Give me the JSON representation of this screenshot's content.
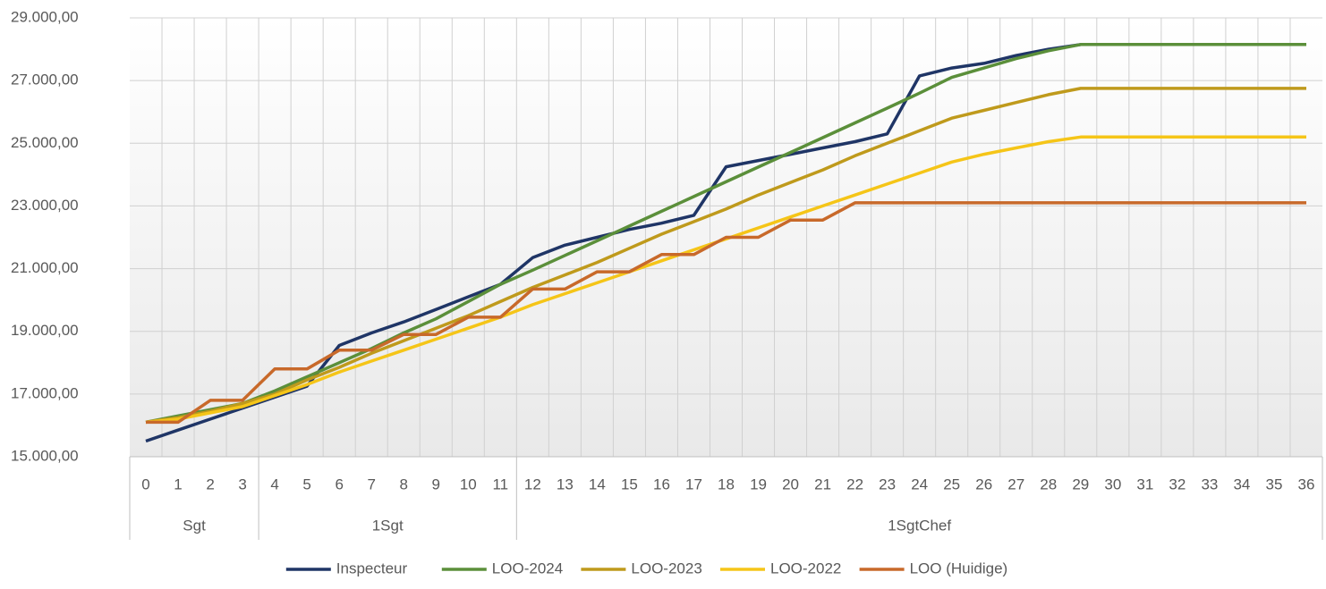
{
  "chart_data": {
    "type": "line",
    "categories": [
      "0",
      "1",
      "2",
      "3",
      "4",
      "5",
      "6",
      "7",
      "8",
      "9",
      "10",
      "11",
      "12",
      "13",
      "14",
      "15",
      "16",
      "17",
      "18",
      "19",
      "20",
      "21",
      "22",
      "23",
      "24",
      "25",
      "26",
      "27",
      "28",
      "29",
      "30",
      "31",
      "32",
      "33",
      "34",
      "35",
      "36"
    ],
    "groups": [
      {
        "name": "Sgt",
        "count": 4
      },
      {
        "name": "1Sgt",
        "count": 8
      },
      {
        "name": "1SgtChef",
        "count": 25
      }
    ],
    "ylim": [
      15000,
      29000
    ],
    "yticks": [
      {
        "value": 15000,
        "label": "15.000,00"
      },
      {
        "value": 17000,
        "label": "17.000,00"
      },
      {
        "value": 19000,
        "label": "19.000,00"
      },
      {
        "value": 21000,
        "label": "21.000,00"
      },
      {
        "value": 23000,
        "label": "23.000,00"
      },
      {
        "value": 25000,
        "label": "25.000,00"
      },
      {
        "value": 27000,
        "label": "27.000,00"
      },
      {
        "value": 29000,
        "label": "29.000,00"
      }
    ],
    "grid": true,
    "legend": "bottom",
    "series": [
      {
        "name": "Inspecteur",
        "color": "#1f3566",
        "values": [
          15500,
          15850,
          16200,
          16550,
          16900,
          17250,
          18550,
          18950,
          19300,
          19700,
          20100,
          20500,
          21350,
          21750,
          22000,
          22250,
          22450,
          22700,
          24250,
          24450,
          24650,
          24850,
          25050,
          25300,
          27150,
          27400,
          27550,
          27800,
          28000,
          28150,
          28150,
          28150,
          28150,
          28150,
          28150,
          28150,
          28150
        ]
      },
      {
        "name": "LOO-2024",
        "color": "#5b8f3a",
        "values": [
          16100,
          16300,
          16500,
          16700,
          17100,
          17550,
          18000,
          18450,
          18950,
          19400,
          19950,
          20500,
          20950,
          21420,
          21890,
          22360,
          22830,
          23300,
          23770,
          24240,
          24710,
          25180,
          25650,
          26120,
          26600,
          27100,
          27400,
          27700,
          27950,
          28150,
          28150,
          28150,
          28150,
          28150,
          28150,
          28150,
          28150
        ]
      },
      {
        "name": "LOO-2023",
        "color": "#bf9a1c",
        "values": [
          16100,
          16250,
          16450,
          16700,
          17000,
          17450,
          17850,
          18300,
          18700,
          19100,
          19500,
          19950,
          20400,
          20800,
          21200,
          21650,
          22100,
          22500,
          22900,
          23350,
          23750,
          24150,
          24600,
          25000,
          25400,
          25800,
          26050,
          26300,
          26550,
          26750,
          26750,
          26750,
          26750,
          26750,
          26750,
          26750,
          26750
        ]
      },
      {
        "name": "LOO-2022",
        "color": "#f5c518",
        "values": [
          16100,
          16200,
          16400,
          16600,
          16950,
          17300,
          17700,
          18050,
          18400,
          18750,
          19100,
          19450,
          19850,
          20200,
          20550,
          20900,
          21250,
          21600,
          21950,
          22300,
          22650,
          23000,
          23350,
          23700,
          24050,
          24400,
          24650,
          24850,
          25050,
          25200,
          25200,
          25200,
          25200,
          25200,
          25200,
          25200,
          25200
        ]
      },
      {
        "name": "LOO (Huidige)",
        "color": "#c8692a",
        "values": [
          16100,
          16100,
          16800,
          16800,
          17800,
          17800,
          18400,
          18400,
          18900,
          18900,
          19450,
          19450,
          20350,
          20350,
          20900,
          20900,
          21450,
          21450,
          22000,
          22000,
          22550,
          22550,
          23100,
          23100,
          23100,
          23100,
          23100,
          23100,
          23100,
          23100,
          23100,
          23100,
          23100,
          23100,
          23100,
          23100,
          23100
        ]
      }
    ]
  }
}
